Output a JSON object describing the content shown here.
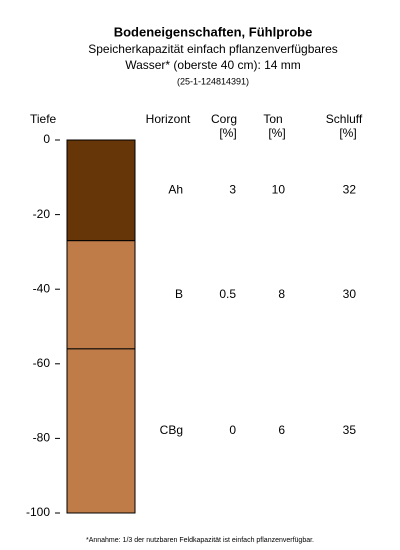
{
  "chart_data": {
    "type": "soil-profile",
    "title": "Bodeneigenschaften, Fühlprobe",
    "subtitle": [
      "Speicherkapazität einfach pflanzenverfügbares",
      "Wasser* (oberste 40 cm): 14 mm"
    ],
    "sample_id": "(25-1-124814391)",
    "y_label": "Tiefe",
    "horizon_header": "Horizont",
    "columns": [
      {
        "label": "Corg",
        "unit": "[%]"
      },
      {
        "label": "Ton",
        "unit": "[%]"
      },
      {
        "label": "Schluff",
        "unit": "[%]"
      }
    ],
    "layers": [
      {
        "name": "Ah",
        "top": 0,
        "bottom": -27,
        "color": "#663508",
        "values": [
          3,
          10,
          32
        ]
      },
      {
        "name": "B",
        "top": -27,
        "bottom": -56,
        "color": "#bf7c49",
        "values": [
          0.5,
          8,
          30
        ]
      },
      {
        "name": "CBg",
        "top": -56,
        "bottom": -100,
        "color": "#bf7c49",
        "values": [
          0,
          6,
          35
        ]
      }
    ],
    "ylim": [
      -100,
      0
    ],
    "yticks": [
      0,
      -20,
      -40,
      -60,
      -80,
      -100
    ],
    "footnote": "*Annahme: 1/3 der nutzbaren Feldkapazität ist einfach pflanzenverfügbar."
  }
}
